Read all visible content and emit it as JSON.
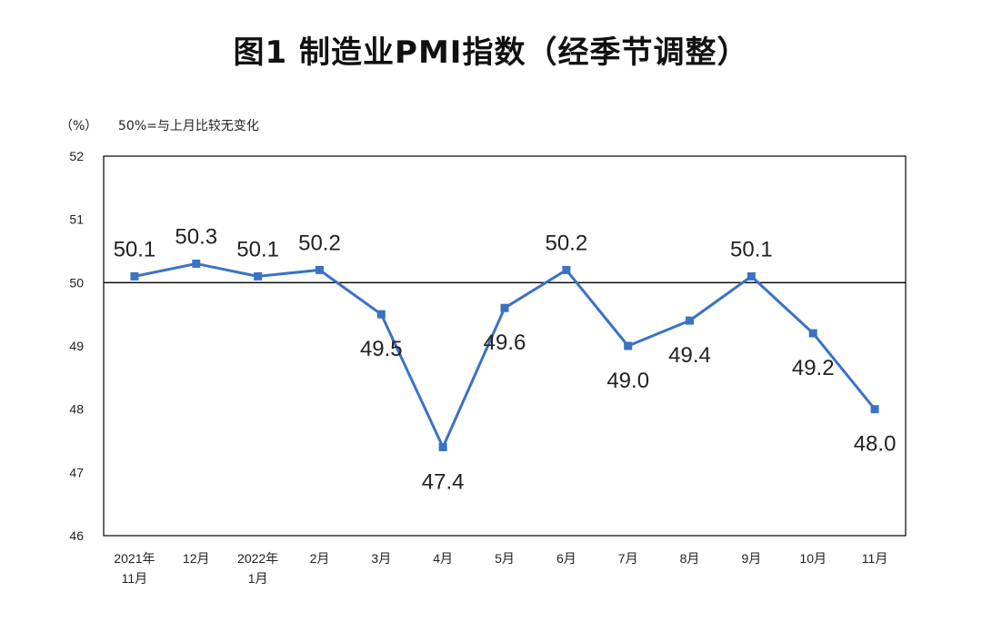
{
  "chart_data": {
    "type": "line",
    "title": "图1 制造业PMI指数（经季节调整）",
    "unit_label": "（%）",
    "note": "50%=与上月比较无变化",
    "categories": [
      [
        "2021年",
        "11月"
      ],
      [
        "12月"
      ],
      [
        "2022年",
        "1月"
      ],
      [
        "2月"
      ],
      [
        "3月"
      ],
      [
        "4月"
      ],
      [
        "5月"
      ],
      [
        "6月"
      ],
      [
        "7月"
      ],
      [
        "8月"
      ],
      [
        "9月"
      ],
      [
        "10月"
      ],
      [
        "11月"
      ]
    ],
    "series": [
      {
        "values": [
          50.1,
          50.3,
          50.1,
          50.2,
          49.5,
          47.4,
          49.6,
          50.2,
          49.0,
          49.4,
          50.1,
          49.2,
          48.0
        ],
        "labels": [
          "50.1",
          "50.3",
          "50.1",
          "50.2",
          "49.5",
          "47.4",
          "49.6",
          "50.2",
          "49.0",
          "49.4",
          "50.1",
          "49.2",
          "48.0"
        ],
        "label_side": [
          "above",
          "above",
          "above",
          "above",
          "below",
          "below",
          "below",
          "above",
          "below",
          "below",
          "above",
          "below",
          "below"
        ],
        "color": "#3a72c4"
      }
    ],
    "ylim": [
      46,
      52
    ],
    "yticks": [
      46,
      47,
      48,
      49,
      50,
      51,
      52
    ],
    "reference_line": 50,
    "grid": false,
    "legend": "none",
    "colors": {
      "line": "#3a72c4",
      "reference": "#000000",
      "frame": "#000000"
    }
  }
}
